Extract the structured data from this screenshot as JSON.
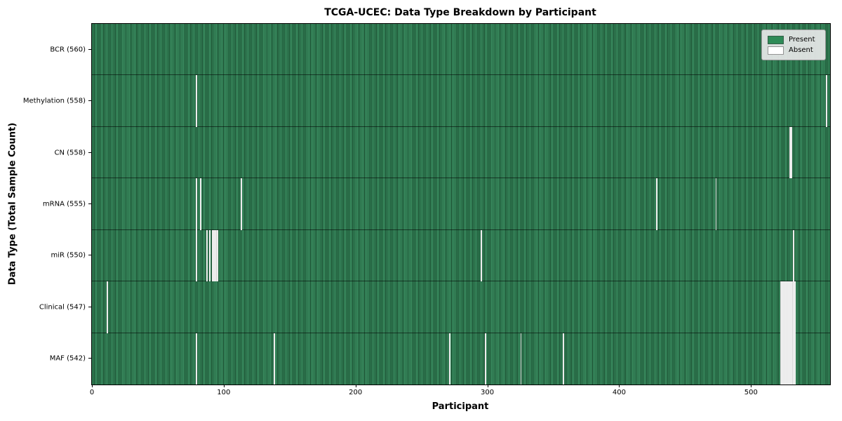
{
  "title": "TCGA-UCEC: Data Type Breakdown by Participant",
  "chart_data": {
    "type": "heatmap",
    "title": "TCGA-UCEC: Data Type Breakdown by Participant",
    "xlabel": "Participant",
    "ylabel": "Data Type (Total Sample Count)",
    "x_ticks": [
      0,
      100,
      200,
      300,
      400,
      500
    ],
    "x_range": [
      0,
      560
    ],
    "n_participants": 560,
    "grid": false,
    "legend_position": "upper right",
    "legend": [
      {
        "label": "Present",
        "color": "#2e8b57"
      },
      {
        "label": "Absent",
        "color": "#ffffff"
      }
    ],
    "colors": {
      "present": "#2e8b57",
      "present_light": "#3b8f62",
      "present_dark": "#17482c",
      "absent": "#ffffff",
      "row_border": "#000000"
    },
    "rows": [
      {
        "key": "bcr",
        "label": "BCR (560)",
        "total": 560,
        "absent": []
      },
      {
        "key": "methylation",
        "label": "Methylation (558)",
        "total": 558,
        "absent": [
          79,
          557
        ]
      },
      {
        "key": "cn",
        "label": "CN (558)",
        "total": 558,
        "absent": [
          529,
          530
        ]
      },
      {
        "key": "mrna",
        "label": "mRNA (555)",
        "total": 555,
        "absent": [
          79,
          82,
          113,
          428,
          473
        ]
      },
      {
        "key": "mir",
        "label": "miR (550)",
        "total": 550,
        "absent": [
          79,
          87,
          89,
          91,
          92,
          93,
          94,
          95,
          295,
          532
        ]
      },
      {
        "key": "clinical",
        "label": "Clinical (547)",
        "total": 547,
        "absent": [
          11,
          522,
          523,
          524,
          525,
          526,
          527,
          528,
          529,
          530,
          531,
          532,
          533
        ]
      },
      {
        "key": "maf",
        "label": "MAF (542)",
        "total": 542,
        "absent": [
          79,
          138,
          271,
          298,
          325,
          357,
          522,
          523,
          524,
          525,
          526,
          527,
          528,
          529,
          530,
          531,
          532,
          533
        ]
      }
    ]
  }
}
